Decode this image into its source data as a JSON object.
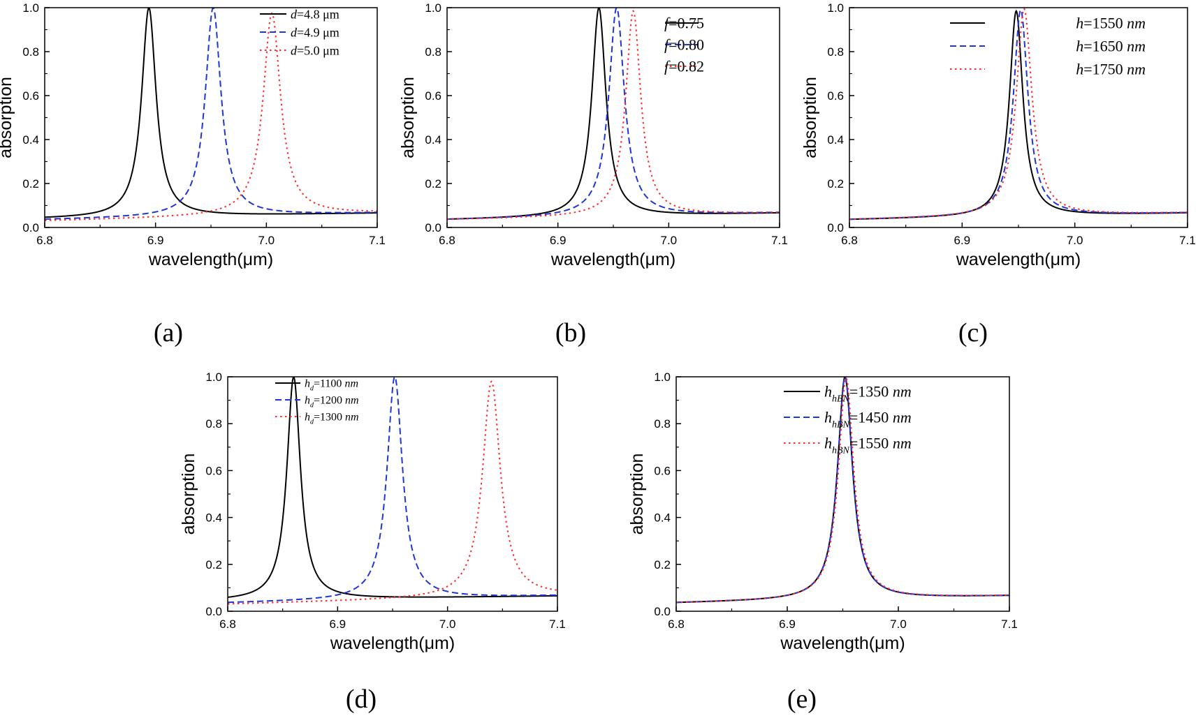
{
  "chart_data": [
    {
      "type": "line",
      "panel_label": "(a)",
      "xlabel": "wavelength(μm)",
      "ylabel": "absorption",
      "xlim": [
        6.8,
        7.1
      ],
      "ylim": [
        0.0,
        1.0
      ],
      "xticks": [
        "6.8",
        "6.9",
        "7.0",
        "7.1"
      ],
      "yticks": [
        "0.0",
        "0.2",
        "0.4",
        "0.6",
        "0.8",
        "1.0"
      ],
      "grid": false,
      "legend": "top-right",
      "series": [
        {
          "var": "d",
          "sub": "",
          "value_text": "=4.8 μm",
          "color": "#000000",
          "dash": "solid",
          "peak_x": 6.894,
          "peak_y": 1.0,
          "hw": 0.0079,
          "base_left": 0.04,
          "base_right": 0.065
        },
        {
          "var": "d",
          "sub": "",
          "value_text": "=4.9 μm",
          "color": "#1f35d6",
          "dash": "dashed",
          "peak_x": 6.952,
          "peak_y": 1.0,
          "hw": 0.0086,
          "base_left": 0.035,
          "base_right": 0.066
        },
        {
          "var": "d",
          "sub": "",
          "value_text": "=5.0 μm",
          "color": "#ff2a2a",
          "dash": "dotted",
          "peak_x": 7.005,
          "peak_y": 0.975,
          "hw": 0.0095,
          "base_left": 0.03,
          "base_right": 0.066
        }
      ]
    },
    {
      "type": "line",
      "panel_label": "(b)",
      "xlabel": "wavelength(μm)",
      "ylabel": "absorption",
      "xlim": [
        6.8,
        7.1
      ],
      "ylim": [
        0.0,
        1.0
      ],
      "xticks": [
        "6.8",
        "6.9",
        "7.0",
        "7.1"
      ],
      "yticks": [
        "0.0",
        "0.2",
        "0.4",
        "0.6",
        "0.8",
        "1.0"
      ],
      "grid": false,
      "legend": "top-right",
      "series": [
        {
          "var": "f",
          "sub": "",
          "value_text": "=0.75",
          "color": "#000000",
          "dash": "solid",
          "peak_x": 6.937,
          "peak_y": 1.0,
          "hw": 0.0077,
          "base_left": 0.035,
          "base_right": 0.065
        },
        {
          "var": "f",
          "sub": "",
          "value_text": "=0.80",
          "color": "#1f35d6",
          "dash": "dashed",
          "peak_x": 6.953,
          "peak_y": 1.0,
          "hw": 0.0085,
          "base_left": 0.035,
          "base_right": 0.066
        },
        {
          "var": "f",
          "sub": "",
          "value_text": "=0.82",
          "color": "#ff2a2a",
          "dash": "dotted",
          "peak_x": 6.968,
          "peak_y": 0.985,
          "hw": 0.0082,
          "base_left": 0.035,
          "base_right": 0.066
        }
      ]
    },
    {
      "type": "line",
      "panel_label": "(c)",
      "xlabel": "wavelength(μm)",
      "ylabel": "absorption",
      "xlim": [
        6.8,
        7.1
      ],
      "ylim": [
        0.0,
        1.0
      ],
      "xticks": [
        "6.8",
        "6.9",
        "7.0",
        "7.1"
      ],
      "yticks": [
        "0.0",
        "0.2",
        "0.4",
        "0.6",
        "0.8",
        "1.0"
      ],
      "grid": false,
      "legend": "top-right",
      "series": [
        {
          "var": "h",
          "sub": "",
          "value_text": "=1550 ",
          "unit_text": "nm",
          "color": "#000000",
          "dash": "solid",
          "peak_x": 6.948,
          "peak_y": 0.985,
          "hw": 0.0072,
          "base_left": 0.035,
          "base_right": 0.065
        },
        {
          "var": "h",
          "sub": "",
          "value_text": "=1650 ",
          "unit_text": "nm",
          "color": "#1f35d6",
          "dash": "dashed",
          "peak_x": 6.952,
          "peak_y": 0.99,
          "hw": 0.0078,
          "base_left": 0.035,
          "base_right": 0.066
        },
        {
          "var": "h",
          "sub": "",
          "value_text": "=1750 ",
          "unit_text": "nm",
          "color": "#ff2a2a",
          "dash": "dotted",
          "peak_x": 6.955,
          "peak_y": 0.995,
          "hw": 0.0084,
          "base_left": 0.035,
          "base_right": 0.066
        }
      ]
    },
    {
      "type": "line",
      "panel_label": "(d)",
      "xlabel": "wavelength(μm)",
      "ylabel": "absorption",
      "xlim": [
        6.8,
        7.1
      ],
      "ylim": [
        0.0,
        1.0
      ],
      "xticks": [
        "6.8",
        "6.9",
        "7.0",
        "7.1"
      ],
      "yticks": [
        "0.0",
        "0.2",
        "0.4",
        "0.6",
        "0.8",
        "1.0"
      ],
      "grid": false,
      "legend": "top-right",
      "series": [
        {
          "var": "h",
          "sub": "d",
          "value_text": "=1100 ",
          "unit_text": "nm",
          "color": "#000000",
          "dash": "solid",
          "peak_x": 6.86,
          "peak_y": 1.0,
          "hw": 0.0075,
          "base_left": 0.045,
          "base_right": 0.065
        },
        {
          "var": "h",
          "sub": "d",
          "value_text": "=1200 ",
          "unit_text": "nm",
          "color": "#1f35d6",
          "dash": "dashed",
          "peak_x": 6.952,
          "peak_y": 1.0,
          "hw": 0.0085,
          "base_left": 0.035,
          "base_right": 0.066
        },
        {
          "var": "h",
          "sub": "d",
          "value_text": "=1300 ",
          "unit_text": "nm",
          "color": "#ff2a2a",
          "dash": "dotted",
          "peak_x": 7.04,
          "peak_y": 0.98,
          "hw": 0.0098,
          "base_left": 0.03,
          "base_right": 0.066
        }
      ]
    },
    {
      "type": "line",
      "panel_label": "(e)",
      "xlabel": "wavelength(μm)",
      "ylabel": "absorption",
      "xlim": [
        6.8,
        7.1
      ],
      "ylim": [
        0.0,
        1.0
      ],
      "xticks": [
        "6.8",
        "6.9",
        "7.0",
        "7.1"
      ],
      "yticks": [
        "0.0",
        "0.2",
        "0.4",
        "0.6",
        "0.8",
        "1.0"
      ],
      "grid": false,
      "legend": "top-right",
      "series": [
        {
          "var": "h",
          "sub": "hBN",
          "value_text": "=1350 ",
          "unit_text": "nm",
          "color": "#000000",
          "dash": "solid",
          "peak_x": 6.952,
          "peak_y": 1.0,
          "hw": 0.0082,
          "base_left": 0.035,
          "base_right": 0.065
        },
        {
          "var": "h",
          "sub": "hBN",
          "value_text": "=1450 ",
          "unit_text": "nm",
          "color": "#1f35d6",
          "dash": "dashed",
          "peak_x": 6.952,
          "peak_y": 1.0,
          "hw": 0.0082,
          "base_left": 0.035,
          "base_right": 0.065
        },
        {
          "var": "h",
          "sub": "hBN",
          "value_text": "=1550 ",
          "unit_text": "nm",
          "color": "#ff2a2a",
          "dash": "dotted",
          "peak_x": 6.953,
          "peak_y": 0.995,
          "hw": 0.0083,
          "base_left": 0.035,
          "base_right": 0.066
        }
      ]
    }
  ]
}
